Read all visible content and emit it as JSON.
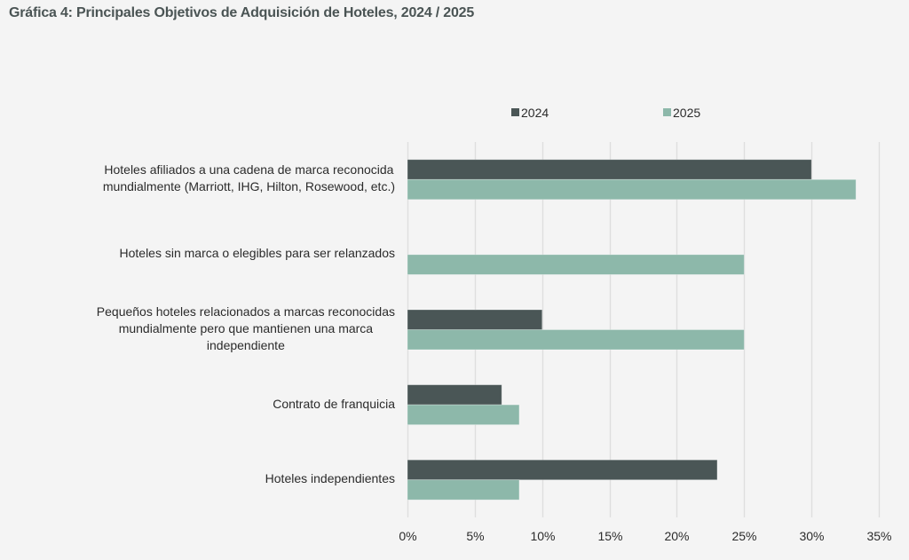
{
  "chart_data": {
    "type": "bar",
    "orientation": "horizontal",
    "title": "Gráfica 4: Principales Objetivos de Adquisición de Hoteles, 2024 / 2025",
    "xlabel": "",
    "ylabel": "",
    "categories": [
      [
        "Hoteles afiliados a una cadena de marca reconocida",
        "mundialmente (Marriott, IHG, Hilton, Rosewood, etc.)"
      ],
      [
        "Hoteles sin marca o elegibles para ser relanzados"
      ],
      [
        "Pequeños hoteles relacionados a marcas reconocidas",
        "mundialmente pero que mantienen una marca",
        "independiente"
      ],
      [
        "Contrato de franquicia"
      ],
      [
        "Hoteles independientes"
      ]
    ],
    "series": [
      {
        "name": "2024",
        "color": "#4a5656",
        "values": [
          30,
          0,
          10,
          7,
          23
        ]
      },
      {
        "name": "2025",
        "color": "#8db8aa",
        "values": [
          33.3,
          25,
          25,
          8.3,
          8.3
        ]
      }
    ],
    "xlim": [
      0,
      35
    ],
    "xticks": [
      0,
      5,
      10,
      15,
      20,
      25,
      30,
      35
    ],
    "xtick_labels": [
      "0%",
      "5%",
      "10%",
      "15%",
      "20%",
      "25%",
      "30%",
      "35%"
    ],
    "grid": "vertical",
    "legend": {
      "position": "top-center",
      "entries": [
        "2024",
        "2025"
      ]
    }
  }
}
